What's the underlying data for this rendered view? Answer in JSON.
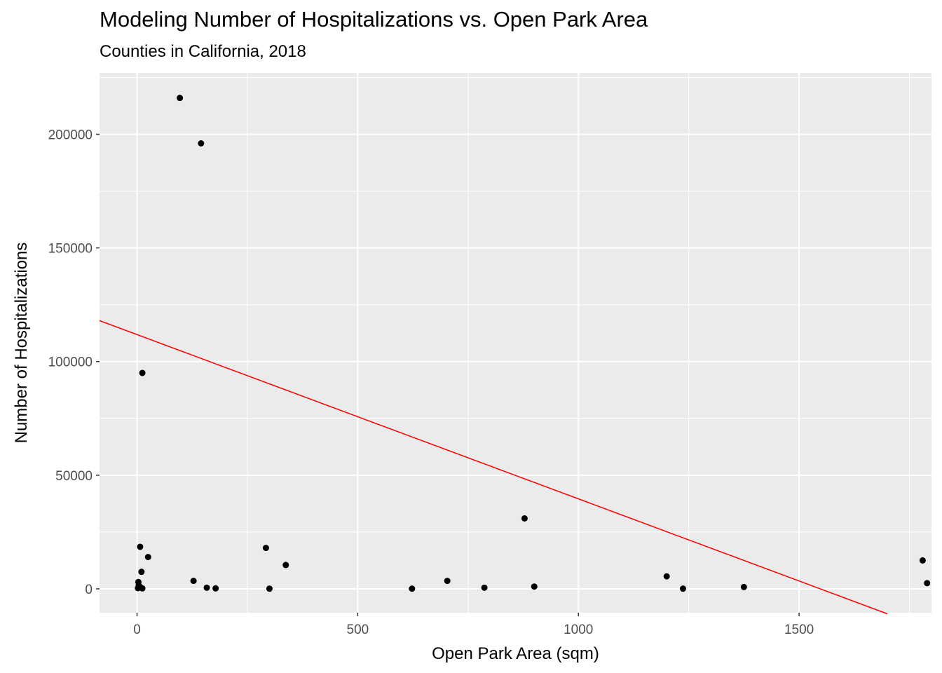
{
  "chart_data": {
    "type": "scatter",
    "title": "Modeling Number of Hospitalizations vs. Open Park Area",
    "subtitle": "Counties in California, 2018",
    "xlabel": "Open Park Area (sqm)",
    "ylabel": "Number of Hospitalizations",
    "xlim": [
      -85,
      1800
    ],
    "ylim": [
      -10500,
      227000
    ],
    "x_ticks": [
      0,
      500,
      1000,
      1500
    ],
    "y_ticks": [
      0,
      50000,
      100000,
      150000,
      200000
    ],
    "grid": true,
    "points": [
      {
        "x": 97,
        "y": 216000
      },
      {
        "x": 145,
        "y": 196000
      },
      {
        "x": 12,
        "y": 95000
      },
      {
        "x": 878,
        "y": 31000
      },
      {
        "x": 7,
        "y": 18500
      },
      {
        "x": 292,
        "y": 18000
      },
      {
        "x": 25,
        "y": 14000
      },
      {
        "x": 1780,
        "y": 12500
      },
      {
        "x": 337,
        "y": 10500
      },
      {
        "x": 10,
        "y": 7500
      },
      {
        "x": 1200,
        "y": 5500
      },
      {
        "x": 128,
        "y": 3500
      },
      {
        "x": 703,
        "y": 3500
      },
      {
        "x": 3,
        "y": 3000
      },
      {
        "x": 1790,
        "y": 2500
      },
      {
        "x": 4,
        "y": 1500
      },
      {
        "x": 900,
        "y": 1000
      },
      {
        "x": 1375,
        "y": 800
      },
      {
        "x": 8,
        "y": 600
      },
      {
        "x": 158,
        "y": 500
      },
      {
        "x": 787,
        "y": 500
      },
      {
        "x": 2,
        "y": 300
      },
      {
        "x": 12,
        "y": 200
      },
      {
        "x": 178,
        "y": 200
      },
      {
        "x": 300,
        "y": 100
      },
      {
        "x": 623,
        "y": 100
      },
      {
        "x": 1237,
        "y": 100
      }
    ],
    "regression_line": {
      "color": "#ff0000",
      "x": [
        -85,
        1700
      ],
      "y": [
        118000,
        -11000
      ]
    },
    "point_color": "#000000",
    "panel_background": "#ebebeb",
    "grid_color": "#ffffff"
  }
}
